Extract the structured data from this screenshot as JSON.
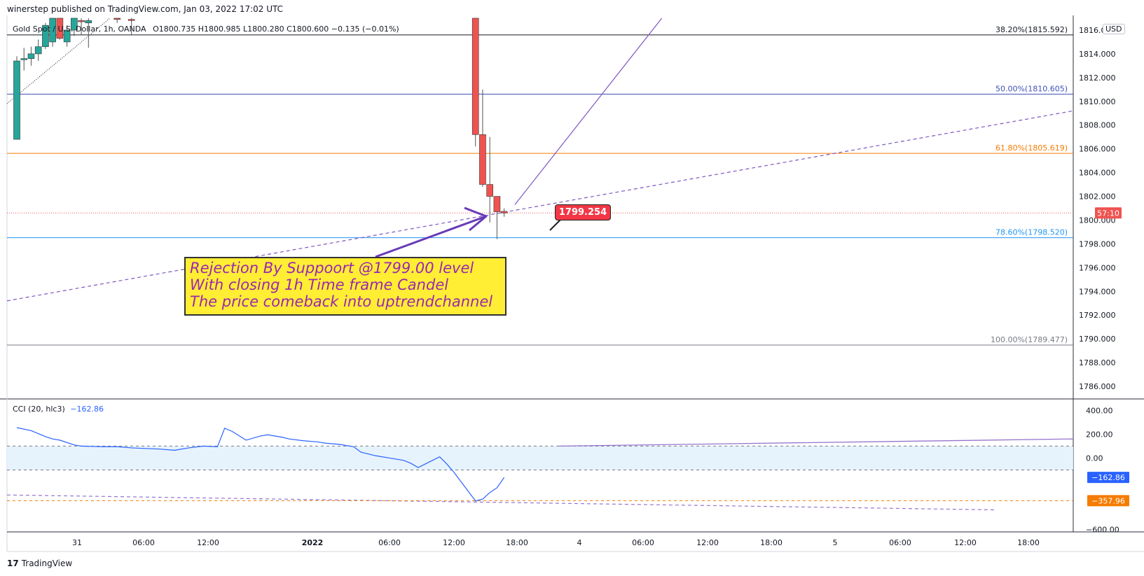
{
  "header": {
    "published": "winerstep published on TradingView.com, Jan 03, 2022 17:02 UTC"
  },
  "symbol": {
    "name": "Gold Spot / U.S. Dollar, 1h, OANDA",
    "ohlc": "O1800.735  H1800.985  L1800.280  C1800.600  −0.135 (−0.01%)",
    "currency_button": "USD"
  },
  "annotation": {
    "line1": "Rejection By Suppoort @1799.00 level",
    "line2": "With closing 1h Time frame Candel",
    "line3": "The price comeback into uptrendchannel"
  },
  "price_callout": "1799.254",
  "cci": {
    "legend": "CCI (20, hlc3)",
    "value": "−162.86"
  },
  "brand": {
    "name": "TradingView"
  },
  "colors": {
    "up": "#26a69a",
    "down": "#ef5350",
    "accent": "#9c27b0",
    "cci_line": "#2962ff",
    "fib_618": "#f57c00",
    "fib_786": "#2196f3",
    "fib_50": "#3f51b5"
  },
  "chart_data": [
    {
      "type": "candlestick",
      "title": "Gold Spot / U.S. Dollar, 1h, OANDA",
      "y_ticks": [
        1786,
        1788,
        1790,
        1792,
        1794,
        1796,
        1798,
        1800,
        1802,
        1804,
        1806,
        1808,
        1810,
        1812,
        1814,
        1816
      ],
      "ylim": [
        1785,
        1817
      ],
      "x_ticks": [
        "31",
        "06:00",
        "12:00",
        "2022",
        "06:00",
        "12:00",
        "18:00",
        "4",
        "06:00",
        "12:00",
        "18:00",
        "5",
        "06:00",
        "12:00",
        "18:00"
      ],
      "fib_levels": [
        {
          "label": "38.20%(1815.592)",
          "value": 1815.592,
          "color": "#131722"
        },
        {
          "label": "50.00%(1810.605)",
          "value": 1810.605,
          "color": "#3f51b5"
        },
        {
          "label": "61.80%(1805.619)",
          "value": 1805.619,
          "color": "#f57c00"
        },
        {
          "label": "78.60%(1798.520)",
          "value": 1798.52,
          "color": "#2196f3"
        },
        {
          "label": "100.00%(1789.477)",
          "value": 1789.477,
          "color": "#787b86"
        }
      ],
      "current_price_label": "57:10",
      "current_price": 1800.6,
      "candles": [
        {
          "t": 0,
          "o": 1806.8,
          "h": 1813.8,
          "l": 1806.8,
          "c": 1813.4
        },
        {
          "t": 1,
          "o": 1813.5,
          "h": 1814.5,
          "l": 1812.6,
          "c": 1813.6
        },
        {
          "t": 2,
          "o": 1813.6,
          "h": 1814.6,
          "l": 1813.0,
          "c": 1814.0
        },
        {
          "t": 3,
          "o": 1814.0,
          "h": 1815.2,
          "l": 1813.4,
          "c": 1814.6
        },
        {
          "t": 4,
          "o": 1814.6,
          "h": 1816.6,
          "l": 1814.4,
          "c": 1816.4
        },
        {
          "t": 5,
          "o": 1815.0,
          "h": 1817.0,
          "l": 1814.6,
          "c": 1817.0
        },
        {
          "t": 6,
          "o": 1817.0,
          "h": 1817.0,
          "l": 1815.2,
          "c": 1815.3
        },
        {
          "t": 7,
          "o": 1815.0,
          "h": 1816.4,
          "l": 1814.6,
          "c": 1816.0
        },
        {
          "t": 8,
          "o": 1816.0,
          "h": 1817.0,
          "l": 1815.5,
          "c": 1817.0
        },
        {
          "t": 9,
          "o": 1816.8,
          "h": 1817.0,
          "l": 1815.6,
          "c": 1816.7
        },
        {
          "t": 10,
          "o": 1816.6,
          "h": 1817.0,
          "l": 1814.5,
          "c": 1816.8
        },
        {
          "t": 14,
          "o": 1817.0,
          "h": 1817.0,
          "l": 1816.6,
          "c": 1816.9
        },
        {
          "t": 16,
          "o": 1816.9,
          "h": 1817.0,
          "l": 1815.6,
          "c": 1816.8
        },
        {
          "t": 64,
          "o": 1817.0,
          "h": 1817.0,
          "l": 1806.2,
          "c": 1807.2
        },
        {
          "t": 65,
          "o": 1807.2,
          "h": 1811.0,
          "l": 1802.8,
          "c": 1803.0
        },
        {
          "t": 66,
          "o": 1803.0,
          "h": 1807.0,
          "l": 1799.8,
          "c": 1802.0
        },
        {
          "t": 67,
          "o": 1802.0,
          "h": 1802.0,
          "l": 1798.4,
          "c": 1800.7
        },
        {
          "t": 68,
          "o": 1800.735,
          "h": 1800.985,
          "l": 1800.28,
          "c": 1800.6
        }
      ]
    },
    {
      "type": "line",
      "title": "CCI (20, hlc3)",
      "y_ticks": [
        400,
        200,
        0,
        -600
      ],
      "y_tick_labels": [
        "400.00",
        "200.00",
        "0.00",
        "−600.00"
      ],
      "bands": [
        100,
        -100
      ],
      "ylim": [
        -620,
        490
      ],
      "labels": [
        {
          "text": "−162.86",
          "value": -162.86,
          "color": "#2962ff"
        },
        {
          "text": "−357.96",
          "value": -357.96,
          "color": "#f57c00"
        }
      ],
      "series": [
        {
          "values": [
            {
              "t": 0,
              "v": 255
            },
            {
              "t": 2,
              "v": 230
            },
            {
              "t": 4,
              "v": 180
            },
            {
              "t": 5,
              "v": 160
            },
            {
              "t": 6,
              "v": 150
            },
            {
              "t": 8,
              "v": 110
            },
            {
              "t": 9,
              "v": 100
            },
            {
              "t": 12,
              "v": 95
            },
            {
              "t": 14,
              "v": 95
            },
            {
              "t": 16,
              "v": 85
            },
            {
              "t": 18,
              "v": 80
            },
            {
              "t": 20,
              "v": 75
            },
            {
              "t": 22,
              "v": 65
            },
            {
              "t": 24,
              "v": 85
            },
            {
              "t": 26,
              "v": 100
            },
            {
              "t": 28,
              "v": 95
            },
            {
              "t": 29,
              "v": 250
            },
            {
              "t": 30,
              "v": 225
            },
            {
              "t": 32,
              "v": 150
            },
            {
              "t": 34,
              "v": 185
            },
            {
              "t": 35,
              "v": 195
            },
            {
              "t": 37,
              "v": 175
            },
            {
              "t": 38,
              "v": 160
            },
            {
              "t": 40,
              "v": 145
            },
            {
              "t": 42,
              "v": 135
            },
            {
              "t": 43,
              "v": 125
            },
            {
              "t": 45,
              "v": 115
            },
            {
              "t": 47,
              "v": 95
            },
            {
              "t": 48,
              "v": 50
            },
            {
              "t": 50,
              "v": 20
            },
            {
              "t": 52,
              "v": 0
            },
            {
              "t": 54,
              "v": -20
            },
            {
              "t": 55,
              "v": -45
            },
            {
              "t": 56,
              "v": -80
            },
            {
              "t": 58,
              "v": -20
            },
            {
              "t": 59,
              "v": 10
            },
            {
              "t": 60,
              "v": -50
            },
            {
              "t": 61,
              "v": -120
            },
            {
              "t": 62,
              "v": -200
            },
            {
              "t": 64,
              "v": -360
            },
            {
              "t": 65,
              "v": -345
            },
            {
              "t": 66,
              "v": -290
            },
            {
              "t": 67,
              "v": -250
            },
            {
              "t": 68,
              "v": -162.86
            }
          ]
        }
      ]
    }
  ]
}
